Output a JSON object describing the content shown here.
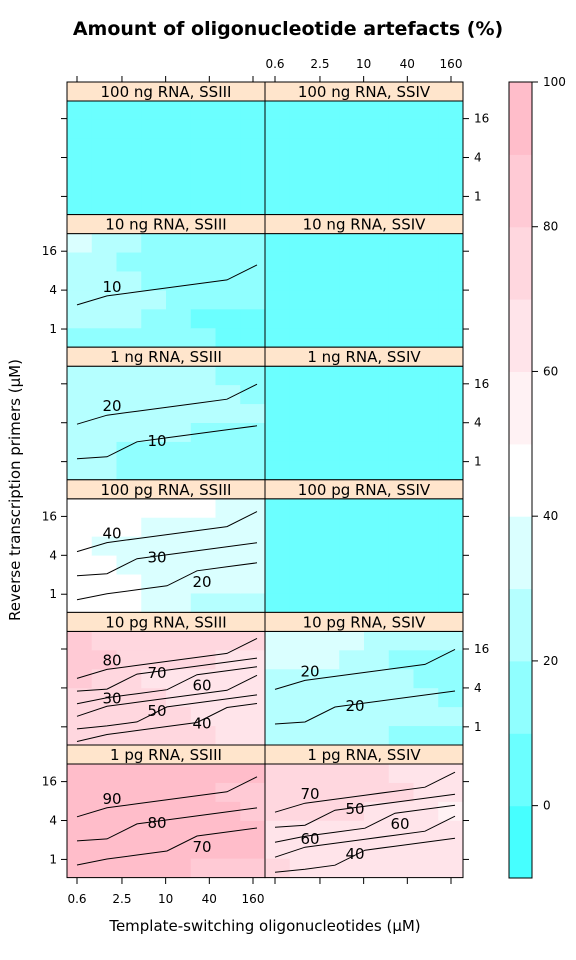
{
  "chart_data": {
    "type": "heatmap",
    "title": "Amount of oligonucleotide artefacts (%)",
    "xlabel": "Template-switching oligonucleotides (µM)",
    "ylabel": "Reverse transcription primers (µM)",
    "x_ticks": [
      "0.6",
      "2.5",
      "10",
      "40",
      "160"
    ],
    "y_ticks": [
      "1",
      "4",
      "16"
    ],
    "x_scale": "log",
    "y_scale": "log",
    "colorbar": {
      "range": [
        -10,
        100
      ],
      "ticks": [
        "0",
        "20",
        "40",
        "60",
        "80",
        "100"
      ],
      "low_color": "#33ffff",
      "mid_color": "#ffffff",
      "high_color": "#ffb6c5",
      "levels": [
        -10,
        0,
        10,
        20,
        30,
        40,
        50,
        60,
        70,
        80,
        90,
        100
      ]
    },
    "panels": [
      {
        "label": "100 ng RNA, SSIII",
        "row": 0,
        "col": 0,
        "base": 0
      },
      {
        "label": "100 ng RNA, SSIV",
        "row": 0,
        "col": 1,
        "base": 0
      },
      {
        "label": "10 ng RNA, SSIII",
        "row": 1,
        "col": 0,
        "base": 8,
        "contours": [
          "10"
        ]
      },
      {
        "label": "10 ng RNA, SSIV",
        "row": 1,
        "col": 1,
        "base": 0
      },
      {
        "label": "1 ng RNA, SSIII",
        "row": 2,
        "col": 0,
        "base": 12,
        "contours": [
          "20",
          "10"
        ]
      },
      {
        "label": "1 ng RNA, SSIV",
        "row": 2,
        "col": 1,
        "base": 0
      },
      {
        "label": "100 pg RNA, SSIII",
        "row": 3,
        "col": 0,
        "base": 28,
        "contours": [
          "40",
          "30",
          "20"
        ]
      },
      {
        "label": "100 pg RNA, SSIV",
        "row": 3,
        "col": 1,
        "base": 0
      },
      {
        "label": "10 pg RNA, SSIII",
        "row": 4,
        "col": 0,
        "base": 62,
        "contours": [
          "80",
          "70",
          "60",
          "30",
          "50",
          "40"
        ]
      },
      {
        "label": "10 pg RNA, SSIV",
        "row": 4,
        "col": 1,
        "base": 14,
        "contours": [
          "20",
          "20"
        ]
      },
      {
        "label": "1 pg RNA, SSIII",
        "row": 5,
        "col": 0,
        "base": 85,
        "contours": [
          "90",
          "80",
          "70"
        ]
      },
      {
        "label": "1 pg RNA, SSIV",
        "row": 5,
        "col": 1,
        "base": 58,
        "contours": [
          "70",
          "50",
          "60",
          "60",
          "40"
        ]
      }
    ]
  }
}
